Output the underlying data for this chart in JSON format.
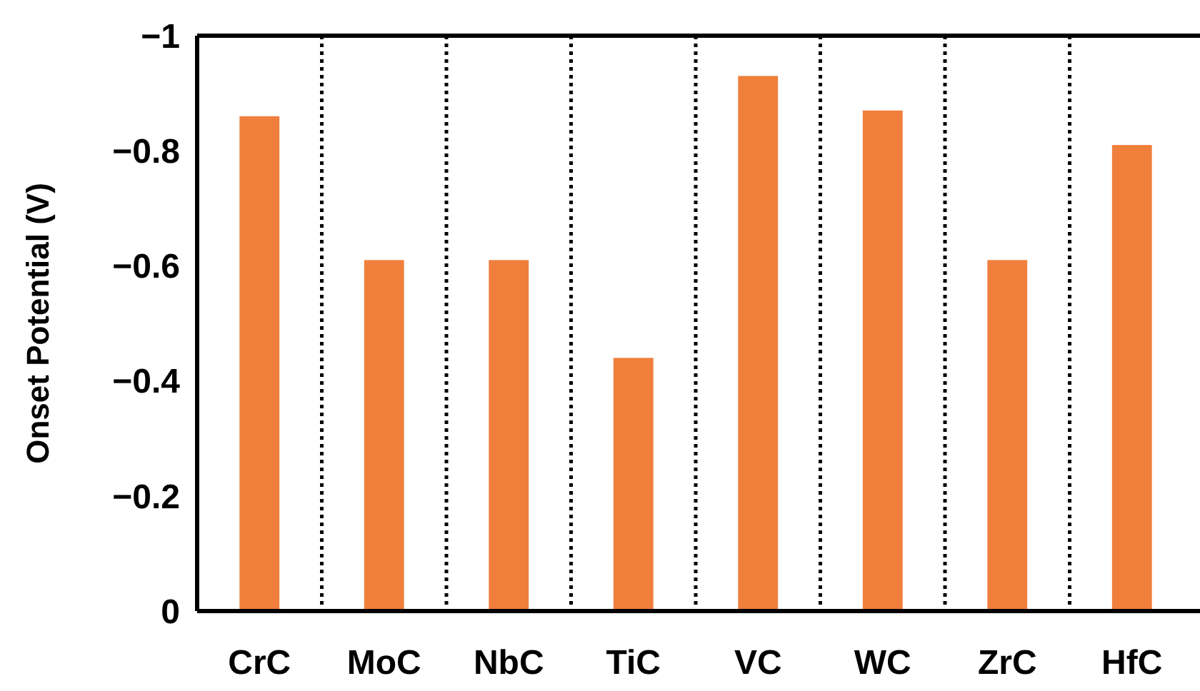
{
  "chart_data": {
    "type": "bar",
    "ylabel": "Onset Potential (V)",
    "categories": [
      "CrC",
      "MoC",
      "NbC",
      "TiC",
      "VC",
      "WC",
      "ZrC",
      "HfC"
    ],
    "values": [
      -0.86,
      -0.61,
      -0.61,
      -0.44,
      -0.93,
      -0.87,
      -0.61,
      -0.81
    ],
    "color": "#f07f3c",
    "ylim": [
      0,
      -1
    ],
    "yticks": [
      {
        "value": -1,
        "label": "−1"
      },
      {
        "value": -0.8,
        "label": "−0.8"
      },
      {
        "value": -0.6,
        "label": "−0.6"
      },
      {
        "value": -0.4,
        "label": "−0.4"
      },
      {
        "value": -0.2,
        "label": "−0.2"
      },
      {
        "value": 0,
        "label": "0"
      }
    ],
    "grid": "x"
  }
}
